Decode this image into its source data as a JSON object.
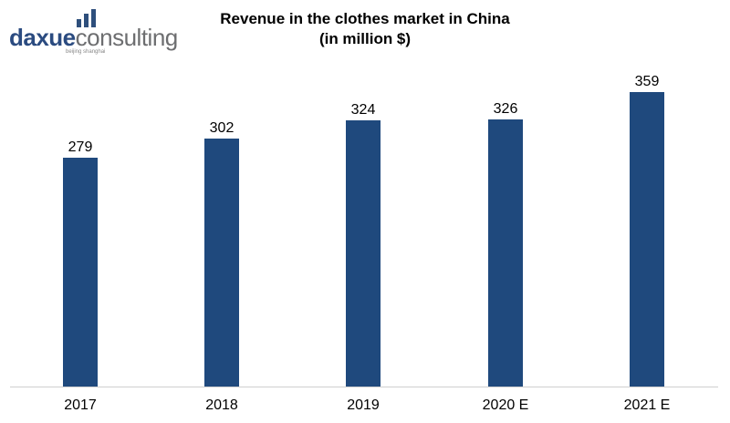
{
  "logo": {
    "part1": "daxue",
    "part2": "consulting",
    "subtitle": "beijing shanghai"
  },
  "title_line1": "Revenue in the clothes market in China",
  "title_line2": "(in million $)",
  "colors": {
    "bar": "#1f497d",
    "axis": "#d0d0d0"
  },
  "chart_data": {
    "type": "bar",
    "title": "Revenue in the clothes market in China (in million $)",
    "categories": [
      "2017",
      "2018",
      "2019",
      "2020 E",
      "2021 E"
    ],
    "values": [
      279,
      302,
      324,
      326,
      359
    ],
    "xlabel": "",
    "ylabel": "",
    "data_labels": true,
    "grid": false,
    "legend": null
  }
}
